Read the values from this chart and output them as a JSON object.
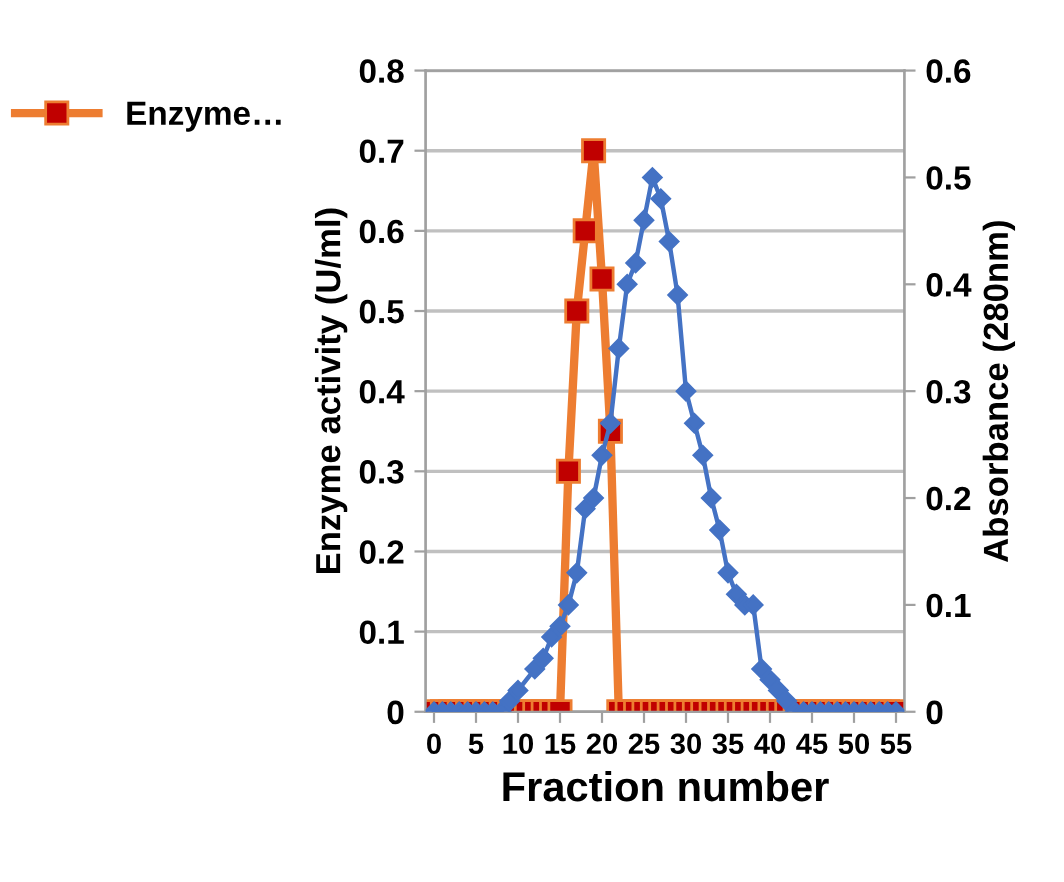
{
  "chart_data": {
    "type": "line",
    "xlabel": "Fraction number",
    "ylabel": "Enzyme activity (U/ml)",
    "y2label": "Absorbance (280nm)",
    "xlim": [
      -1,
      56
    ],
    "xticks": [
      0,
      5,
      10,
      15,
      20,
      25,
      30,
      35,
      40,
      45,
      50,
      55
    ],
    "ylim": [
      0,
      0.8
    ],
    "yticks": [
      0,
      0.1,
      0.2,
      0.3,
      0.4,
      0.5,
      0.6,
      0.7,
      0.8
    ],
    "y2lim": [
      0,
      0.6
    ],
    "y2ticks": [
      0,
      0.1,
      0.2,
      0.3,
      0.4,
      0.5,
      0.6
    ],
    "grid": "y",
    "legend": "left",
    "line_style": "solid",
    "series": [
      {
        "name": "Enzyme…",
        "color": "#ed7d31",
        "marker": "square",
        "x": [
          0,
          1,
          2,
          3,
          4,
          5,
          6,
          7,
          8,
          9,
          10,
          11,
          12,
          13,
          14,
          15,
          16,
          17,
          18,
          19,
          20,
          21,
          22,
          23,
          24,
          25,
          26,
          27,
          28,
          29,
          30,
          31,
          32,
          33,
          34,
          35,
          36,
          37,
          38,
          39,
          40,
          41,
          42,
          43,
          44,
          45,
          46,
          47,
          48,
          49,
          50,
          51,
          52,
          53,
          54,
          55
        ],
        "values": [
          0,
          0,
          0,
          0,
          0,
          0,
          0,
          0,
          0,
          0,
          0,
          0,
          0,
          0,
          0,
          0,
          0.3,
          0.5,
          0.6,
          0.7,
          0.54,
          0.35,
          0,
          0,
          0,
          0,
          0,
          0,
          0,
          0,
          0,
          0,
          0,
          0,
          0,
          0,
          0,
          0,
          0,
          0,
          0,
          0,
          0,
          0,
          0,
          0,
          0,
          0,
          0,
          0,
          0,
          0,
          0,
          0,
          0,
          0
        ]
      },
      {
        "color": "#4472c4",
        "marker": "diamond",
        "axis": "y2",
        "x": [
          0,
          1,
          2,
          3,
          4,
          5,
          6,
          7,
          8,
          9,
          10,
          12,
          13,
          14,
          15,
          16,
          17,
          18,
          19,
          20,
          21,
          22,
          23,
          24,
          25,
          26,
          27,
          28,
          29,
          30,
          31,
          32,
          33,
          34,
          35,
          36,
          37,
          38,
          39,
          40,
          41,
          42,
          43,
          44,
          45,
          46,
          47,
          48,
          49,
          50,
          51,
          52,
          53,
          54,
          55
        ],
        "values": [
          0,
          0,
          0,
          0,
          0,
          0,
          0,
          0,
          0,
          0.01,
          0.02,
          0.04,
          0.05,
          0.07,
          0.08,
          0.1,
          0.13,
          0.19,
          0.2,
          0.24,
          0.27,
          0.34,
          0.4,
          0.42,
          0.46,
          0.5,
          0.48,
          0.44,
          0.39,
          0.3,
          0.27,
          0.24,
          0.2,
          0.17,
          0.13,
          0.11,
          0.1,
          0.1,
          0.04,
          0.03,
          0.02,
          0.01,
          0,
          0,
          0,
          0,
          0,
          0,
          0,
          0,
          0,
          0,
          0,
          0,
          0
        ]
      }
    ]
  }
}
